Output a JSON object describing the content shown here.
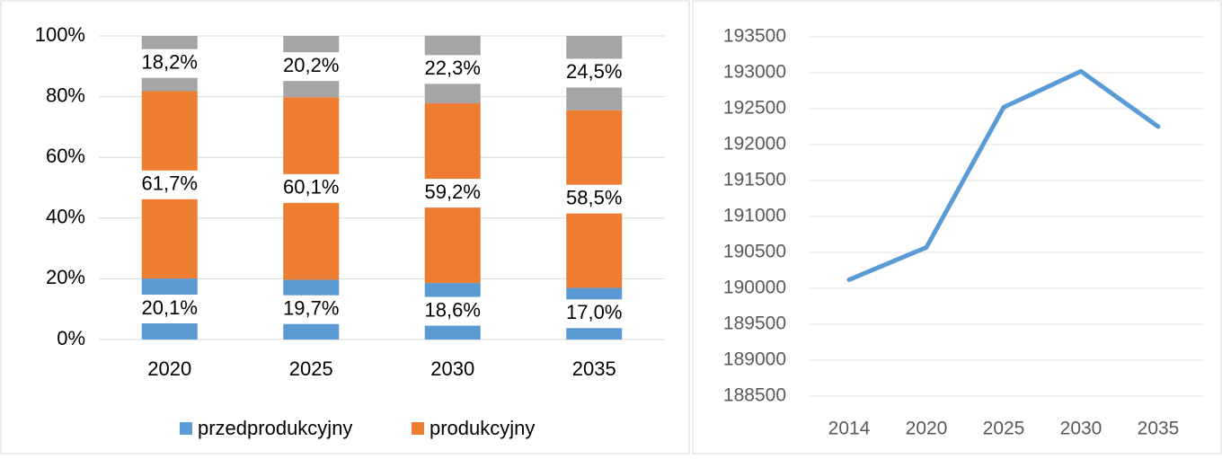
{
  "chart_data": [
    {
      "type": "stacked_bar",
      "categories": [
        "2020",
        "2025",
        "2030",
        "2035"
      ],
      "series": [
        {
          "name": "przedprodukcyjny",
          "color": "#5b9bd5",
          "values": [
            20.1,
            19.7,
            18.6,
            17.0
          ],
          "value_labels": [
            "20,1%",
            "19,7%",
            "18,6%",
            "17,0%"
          ]
        },
        {
          "name": "produkcyjny",
          "color": "#ed7d31",
          "values": [
            61.7,
            60.1,
            59.2,
            58.5
          ],
          "value_labels": [
            "61,7%",
            "60,1%",
            "59,2%",
            "58,5%"
          ]
        },
        {
          "color": "#a5a5a5",
          "values": [
            18.2,
            20.2,
            22.3,
            24.5
          ],
          "value_labels": [
            "18,2%",
            "20,2%",
            "22,3%",
            "24,5%"
          ]
        }
      ],
      "ylim": [
        0,
        100
      ],
      "yticks": [
        {
          "value": 0,
          "label": "0%"
        },
        {
          "value": 20,
          "label": "20%"
        },
        {
          "value": 40,
          "label": "40%"
        },
        {
          "value": 60,
          "label": "60%"
        },
        {
          "value": 80,
          "label": "80%"
        },
        {
          "value": 100,
          "label": "100%"
        }
      ],
      "grid": true,
      "legend": "bottom"
    },
    {
      "type": "line",
      "categories": [
        "2014",
        "2020",
        "2025",
        "2030",
        "2035"
      ],
      "series": [
        {
          "color": "#5b9bd5",
          "values": [
            190120,
            190570,
            192520,
            193020,
            192250
          ]
        }
      ],
      "ylim": [
        188500,
        193500
      ],
      "yticks": [
        188500,
        189000,
        189500,
        190000,
        190500,
        191000,
        191500,
        192000,
        192500,
        193000,
        193500
      ],
      "grid": true
    }
  ]
}
